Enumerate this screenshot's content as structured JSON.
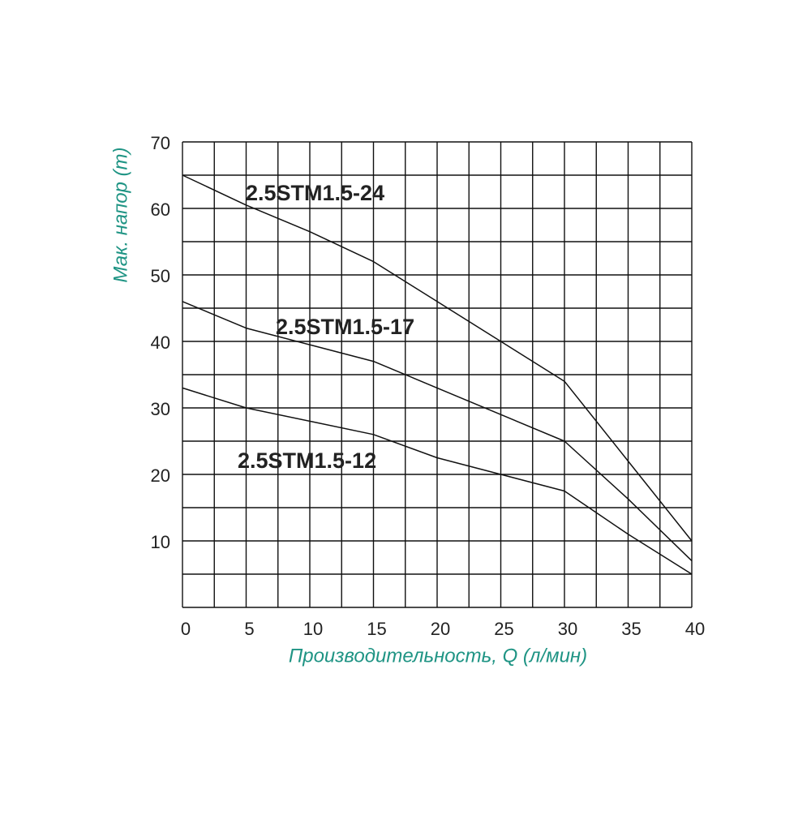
{
  "chart_data": {
    "type": "line",
    "x_label": "Производительность, Q (л/мин)",
    "y_label": "Мак. напор (m)",
    "x": [
      0,
      5,
      10,
      15,
      20,
      25,
      30,
      35,
      40
    ],
    "series": [
      {
        "name": "2.5STM1.5-24",
        "color": "#111111",
        "values": [
          65,
          60.5,
          56.5,
          52,
          46,
          40,
          34,
          22,
          10
        ]
      },
      {
        "name": "2.5STM1.5-17",
        "color": "#111111",
        "values": [
          46,
          42,
          39.5,
          37,
          33,
          29,
          25,
          16.3,
          7
        ]
      },
      {
        "name": "2.5STM1.5-12",
        "color": "#111111",
        "values": [
          33,
          30,
          28,
          26,
          22.5,
          20,
          17.5,
          11,
          5
        ]
      }
    ],
    "xlim": [
      0,
      40
    ],
    "xticks": [
      0,
      5,
      10,
      15,
      20,
      25,
      30,
      35,
      40
    ],
    "ylim": [
      0,
      70
    ],
    "yticks": [
      10,
      20,
      30,
      40,
      50,
      60,
      70
    ],
    "xgridlines": [
      0,
      2.5,
      5,
      7.5,
      10,
      12.5,
      15,
      17.5,
      20,
      22.5,
      25,
      27.5,
      30,
      32.5,
      35,
      37.5,
      40
    ],
    "ygridlines": [
      0,
      5,
      10,
      15,
      20,
      25,
      30,
      35,
      40,
      45,
      50,
      55,
      60,
      65,
      70
    ],
    "grid": true
  }
}
